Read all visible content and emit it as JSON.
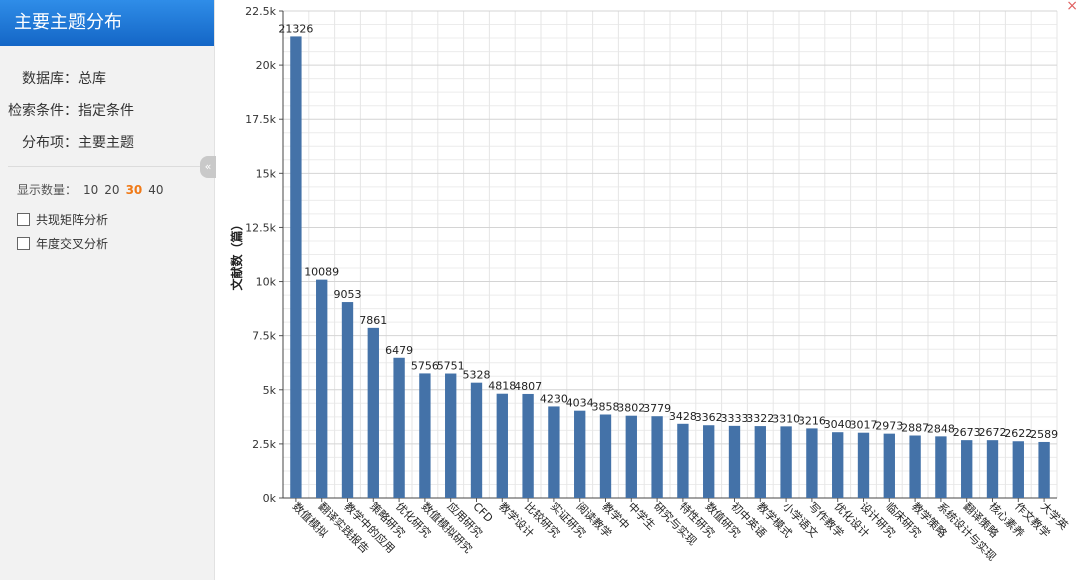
{
  "sidebar": {
    "title": "主要主题分布",
    "database_label": "数据库：",
    "database_value": "总库",
    "condition_label": "检索条件：",
    "condition_value": "指定条件",
    "item_label": "分布项：",
    "item_value": "主要主题",
    "count_label": "显示数量：",
    "count_options": [
      "10",
      "20",
      "30",
      "40"
    ],
    "count_selected": "30",
    "options": [
      "共现矩阵分析",
      "年度交叉分析"
    ]
  },
  "icons": {
    "collapse": "double-chevron-left-icon",
    "close": "close-icon"
  },
  "chart_data": {
    "type": "bar",
    "ylabel": "文献数（篇）",
    "xlabel": "",
    "ylim": [
      0,
      22500
    ],
    "yticks": [
      "0k",
      "2.5k",
      "5k",
      "7.5k",
      "10k",
      "12.5k",
      "15k",
      "17.5k",
      "20k",
      "22.5k"
    ],
    "bar_color": "#4472a8",
    "grid": true,
    "categories": [
      "数值模拟",
      "翻译实践报告",
      "教学中的应用",
      "策略研究",
      "优化研究",
      "数值模拟研究",
      "应用研究",
      "CFD",
      "教学设计",
      "比较研究",
      "实证研究",
      "阅读教学",
      "教学中",
      "中学生",
      "研究与实现",
      "特性研究",
      "数值研究",
      "初中英语",
      "教学模式",
      "小学语文",
      "写作教学",
      "优化设计",
      "设计研究",
      "临床研究",
      "教学策略",
      "系统设计与实现",
      "翻译策略",
      "核心素养",
      "作文教学",
      "大学英"
    ],
    "values": [
      21326,
      10089,
      9053,
      7861,
      6479,
      5756,
      5751,
      5328,
      4818,
      4807,
      4230,
      4034,
      3858,
      3802,
      3779,
      3428,
      3362,
      3333,
      3322,
      3310,
      3216,
      3040,
      3017,
      2973,
      2887,
      2848,
      2673,
      2672,
      2622,
      2589
    ]
  }
}
